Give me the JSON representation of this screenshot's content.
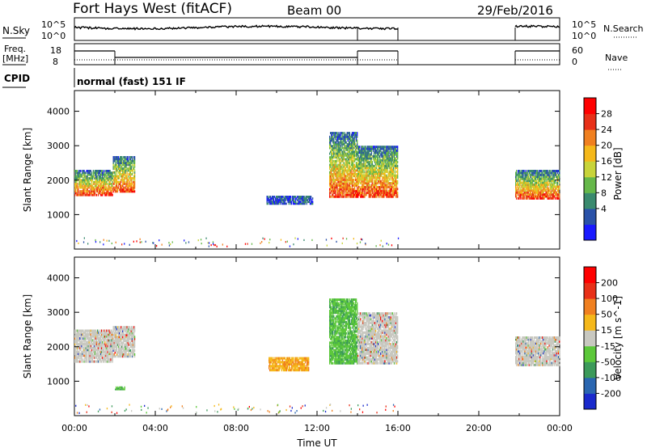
{
  "header": {
    "station": "Fort Hays West (fitACF)",
    "beam": "Beam 00",
    "date": "29/Feb/2016"
  },
  "panels": {
    "nsky": {
      "left_label": "N.Sky",
      "left_ticks": [
        "10^5",
        "10^0"
      ],
      "right_label": "N.Search",
      "right_ticks": [
        "10^5",
        "10^0"
      ]
    },
    "freq": {
      "left_label_line1": "Freq.",
      "left_label_line2": "[MHz]",
      "left_ticks": [
        "18",
        "8"
      ],
      "right_label": "Nave",
      "right_ticks": [
        "60",
        "0"
      ]
    },
    "cpid": {
      "label": "CPID",
      "text": "normal (fast) 151 IF"
    }
  },
  "colorbars": {
    "power": {
      "label": "Power [dB]",
      "ticks": [
        "28",
        "24",
        "20",
        "16",
        "12",
        "8",
        "4"
      ],
      "colors": [
        "#1a1aff",
        "#2a52a8",
        "#3a8a6e",
        "#66b84a",
        "#c8d43a",
        "#f5b81a",
        "#f08020",
        "#e83018",
        "#ff0000"
      ]
    },
    "velocity": {
      "label": "Velocity [m s^-1]",
      "ticks": [
        "200",
        "100",
        "50",
        "15",
        "-15",
        "-50",
        "-100",
        "-200"
      ],
      "colors": [
        "#1a2acc",
        "#2a66b0",
        "#3c9a5a",
        "#5cc83a",
        "#c8c8c0",
        "#f5b81a",
        "#f08020",
        "#e83018",
        "#ff0000"
      ]
    }
  },
  "chart_data": [
    {
      "type": "heatmap",
      "panel": "power",
      "ylabel": "Slant Range [km]",
      "xlabel": "",
      "ylim": [
        0,
        4600
      ],
      "xlim": [
        0,
        24
      ],
      "yticks": [
        "4000",
        "3000",
        "2000",
        "1000"
      ],
      "xticks": [],
      "regions": [
        {
          "t": [
            0.0,
            1.9
          ],
          "r": [
            1550,
            2300
          ],
          "level": "high-power band"
        },
        {
          "t": [
            1.9,
            3.0
          ],
          "r": [
            1650,
            2700
          ],
          "level": "mixed"
        },
        {
          "t": [
            9.5,
            11.8
          ],
          "r": [
            1300,
            1550
          ],
          "level": "low-power scatter"
        },
        {
          "t": [
            12.6,
            14.0
          ],
          "r": [
            1500,
            3400
          ],
          "level": "tilted echo"
        },
        {
          "t": [
            14.0,
            16.0
          ],
          "r": [
            1500,
            3000
          ],
          "level": "high-power band"
        },
        {
          "t": [
            21.8,
            24.0
          ],
          "r": [
            1450,
            2300
          ],
          "level": "high-power band"
        }
      ]
    },
    {
      "type": "heatmap",
      "panel": "velocity",
      "ylabel": "Slant Range [km]",
      "xlabel": "Time UT",
      "ylim": [
        0,
        4600
      ],
      "xlim": [
        0,
        24
      ],
      "yticks": [
        "4000",
        "3000",
        "2000",
        "1000"
      ],
      "xticks": [
        "00:00",
        "04:00",
        "08:00",
        "12:00",
        "16:00",
        "20:00",
        "00:00"
      ],
      "regions": [
        {
          "t": [
            0.0,
            1.9
          ],
          "r": [
            1550,
            2500
          ],
          "level": "ground scatter"
        },
        {
          "t": [
            1.9,
            3.0
          ],
          "r": [
            1700,
            2600
          ],
          "level": "ground scatter"
        },
        {
          "t": [
            2.0,
            2.5
          ],
          "r": [
            750,
            850
          ],
          "level": "positive"
        },
        {
          "t": [
            9.6,
            11.6
          ],
          "r": [
            1300,
            1700
          ],
          "level": "negative"
        },
        {
          "t": [
            12.6,
            14.0
          ],
          "r": [
            1500,
            3400
          ],
          "level": "positive"
        },
        {
          "t": [
            14.0,
            16.0
          ],
          "r": [
            1500,
            3000
          ],
          "level": "ground scatter"
        },
        {
          "t": [
            21.8,
            24.0
          ],
          "r": [
            1450,
            2300
          ],
          "level": "ground scatter"
        }
      ]
    }
  ],
  "timeseries": {
    "nsky_segments": [
      [
        0.0,
        14.0
      ],
      [
        14.0,
        16.0
      ],
      [
        21.8,
        24.0
      ]
    ],
    "freq_segments": [
      {
        "t": [
          0.0,
          2.0
        ],
        "level": "high"
      },
      {
        "t": [
          2.0,
          14.0
        ],
        "level": "low"
      },
      {
        "t": [
          14.0,
          16.0
        ],
        "level": "high"
      },
      {
        "t": [
          21.8,
          24.0
        ],
        "level": "high"
      }
    ]
  }
}
